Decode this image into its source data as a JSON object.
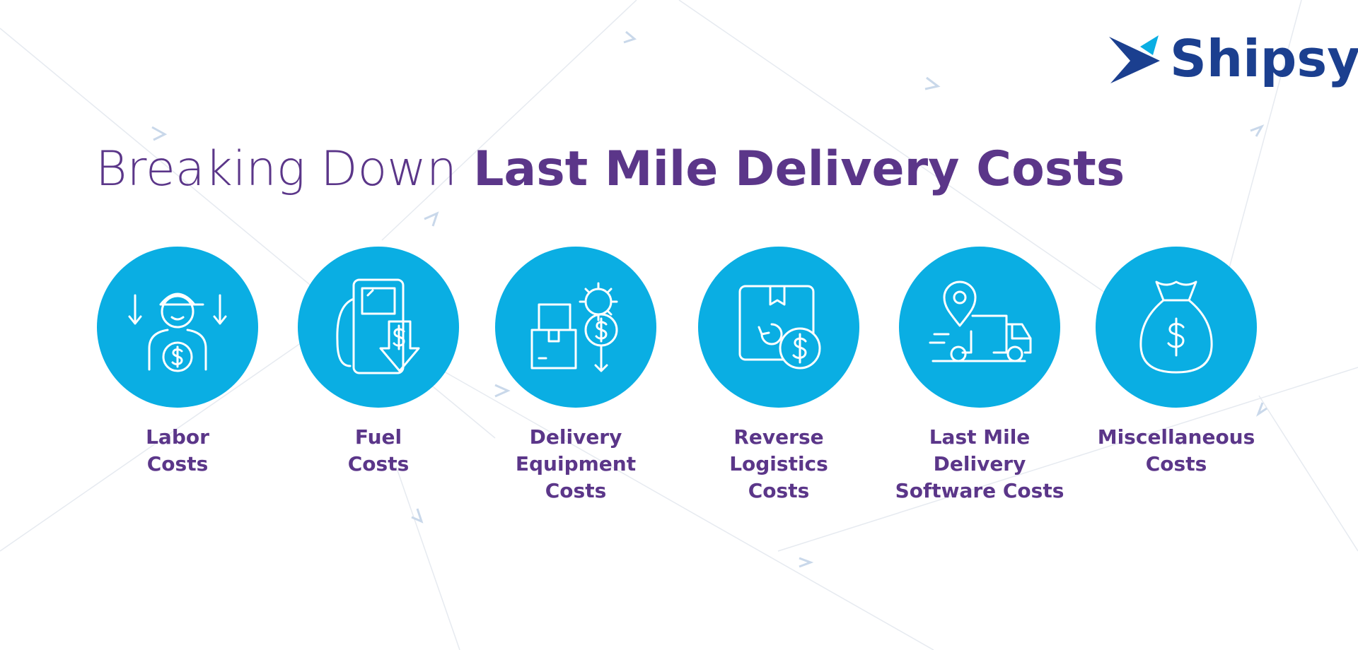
{
  "brand": {
    "name": "Shipsy"
  },
  "header": {
    "title_light": "Breaking Down",
    "title_bold": "Last Mile Delivery Costs"
  },
  "items": [
    {
      "label_lines": [
        "Labor",
        "Costs"
      ]
    },
    {
      "label_lines": [
        "Fuel",
        "Costs"
      ]
    },
    {
      "label_lines": [
        "Delivery",
        "Equipment",
        "Costs"
      ]
    },
    {
      "label_lines": [
        "Reverse",
        "Logistics",
        "Costs"
      ]
    },
    {
      "label_lines": [
        "Last Mile",
        "Delivery",
        "Software Costs"
      ]
    },
    {
      "label_lines": [
        "Miscellaneous",
        "Costs"
      ]
    }
  ]
}
